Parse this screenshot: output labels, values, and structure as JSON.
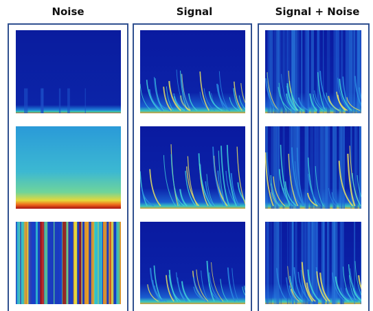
{
  "headers": [
    "Noise",
    "Signal",
    "Signal + Noise"
  ]
}
